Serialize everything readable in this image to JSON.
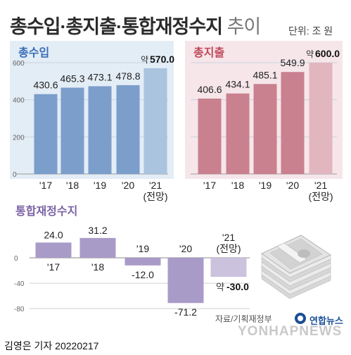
{
  "header": {
    "title_bold": "총수입·총지출·통합재정수지",
    "title_light": " 추이",
    "unit": "단위: 조 원"
  },
  "source": "자료/기획재정부",
  "footer": "김영은 기자  20220217",
  "logo": {
    "korean": "연합뉴스",
    "english": "YONHAPNEWS"
  },
  "colors": {
    "revenue": "#7b9ecb",
    "revenue_est": "#aac3df",
    "expense": "#c9808f",
    "expense_est": "#e2b6bf",
    "balance": "#a99bc8",
    "balance_est": "#cbc2de",
    "panel_blue": "#e3edf6",
    "panel_pink": "#f6e6ea",
    "title_blue": "#3a6db5",
    "title_red": "#c04a5a",
    "title_purple": "#7b64a6"
  },
  "chart_data": [
    {
      "type": "bar",
      "title": "총수입",
      "categories": [
        "'17",
        "'18",
        "'19",
        "'20",
        "'21\n(전망)"
      ],
      "values": [
        430.6,
        465.3,
        473.1,
        478.8,
        570.0
      ],
      "value_labels": [
        "430.6",
        "465.3",
        "473.1",
        "478.8",
        "570.0"
      ],
      "value_prefix": [
        "",
        "",
        "",
        "",
        "약"
      ],
      "estimate": [
        false,
        false,
        false,
        false,
        true
      ],
      "ylim": [
        0,
        650
      ],
      "yticks": [
        0,
        200,
        400,
        600
      ],
      "grid": true
    },
    {
      "type": "bar",
      "title": "총지출",
      "categories": [
        "'17",
        "'18",
        "'19",
        "'20",
        "'21\n(전망)"
      ],
      "values": [
        406.6,
        434.1,
        485.1,
        549.9,
        600.0
      ],
      "value_labels": [
        "406.6",
        "434.1",
        "485.1",
        "549.9",
        "600.0"
      ],
      "value_prefix": [
        "",
        "",
        "",
        "",
        "약"
      ],
      "estimate": [
        false,
        false,
        false,
        false,
        true
      ],
      "ylim": [
        0,
        650
      ],
      "grid": true
    },
    {
      "type": "bar",
      "title": "통합재정수지",
      "categories": [
        "'17",
        "'18",
        "'19",
        "'20",
        "'21\n(전망)"
      ],
      "values": [
        24.0,
        31.2,
        -12.0,
        -71.2,
        -30.0
      ],
      "value_labels": [
        "24.0",
        "31.2",
        "-12.0",
        "-71.2",
        "-30.0"
      ],
      "value_prefix": [
        "",
        "",
        "",
        "",
        "약 "
      ],
      "estimate": [
        false,
        false,
        false,
        false,
        true
      ],
      "ylim": [
        -80,
        40
      ],
      "yticks": [
        0,
        -40,
        -80
      ],
      "grid": true
    }
  ]
}
